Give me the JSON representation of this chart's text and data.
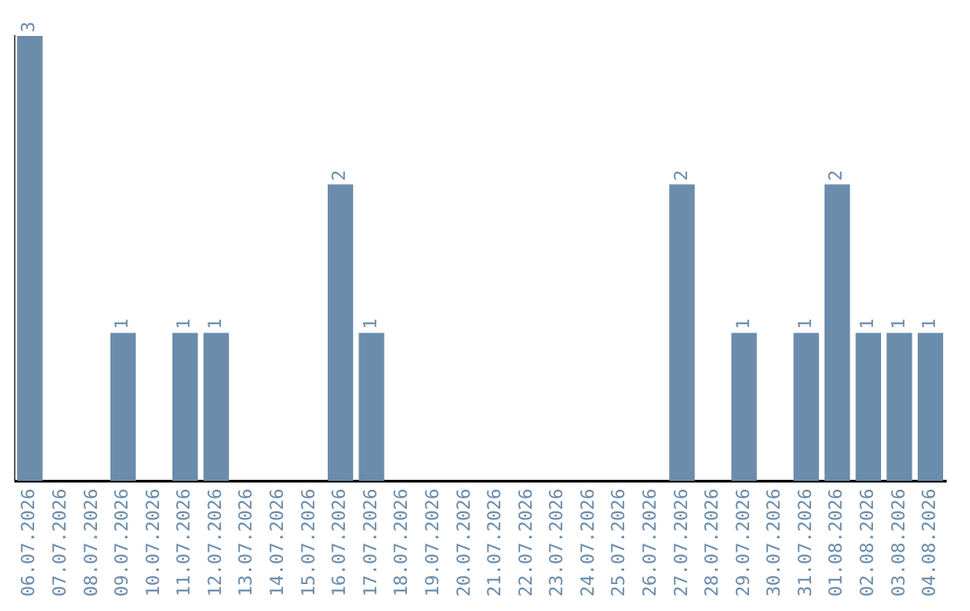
{
  "chart_data": {
    "type": "bar",
    "categories": [
      "06.07.2026",
      "07.07.2026",
      "08.07.2026",
      "09.07.2026",
      "10.07.2026",
      "11.07.2026",
      "12.07.2026",
      "13.07.2026",
      "14.07.2026",
      "15.07.2026",
      "16.07.2026",
      "17.07.2026",
      "18.07.2026",
      "19.07.2026",
      "20.07.2026",
      "21.07.2026",
      "22.07.2026",
      "23.07.2026",
      "24.07.2026",
      "25.07.2026",
      "26.07.2026",
      "27.07.2026",
      "28.07.2026",
      "29.07.2026",
      "30.07.2026",
      "31.07.2026",
      "01.08.2026",
      "02.08.2026",
      "03.08.2026",
      "04.08.2026"
    ],
    "values": [
      3,
      0,
      0,
      1,
      0,
      1,
      1,
      0,
      0,
      0,
      2,
      1,
      0,
      0,
      0,
      0,
      0,
      0,
      0,
      0,
      0,
      2,
      0,
      1,
      0,
      1,
      2,
      1,
      1,
      1
    ],
    "value_labels": [
      "3",
      null,
      null,
      "1",
      null,
      "1",
      "1",
      null,
      null,
      null,
      "2",
      "1",
      null,
      null,
      null,
      null,
      null,
      null,
      null,
      null,
      null,
      "2",
      null,
      "1",
      null,
      "1",
      "2",
      "1",
      "1",
      "1"
    ],
    "color": "#6b8cab",
    "grid": false,
    "legend": false
  }
}
